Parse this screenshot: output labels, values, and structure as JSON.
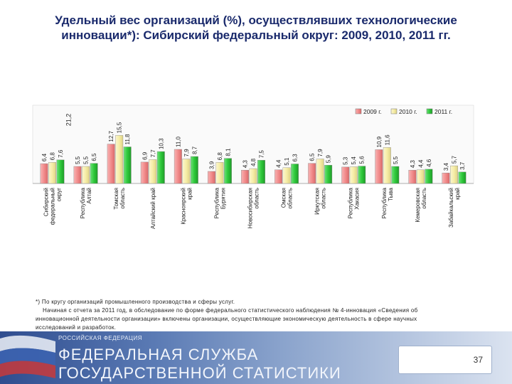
{
  "title_line1": "Удельный вес организаций (%), осуществлявших технологические",
  "title_line2": "инновации*): Сибирский федеральный округ: 2009, 2010, 2011 гг.",
  "chart_data": {
    "type": "bar",
    "categories": [
      [
        "Сибирский",
        "федеральный",
        "округ"
      ],
      [
        "Республика",
        "Алтай"
      ],
      [
        "Томская",
        "область"
      ],
      [
        "Алтайский край"
      ],
      [
        "Красноярский",
        "край"
      ],
      [
        "Республика",
        "Бурятия"
      ],
      [
        "Новосибирская",
        "область"
      ],
      [
        "Омская",
        "область"
      ],
      [
        "Иркутская",
        "область"
      ],
      [
        "Республика",
        "Хакасия"
      ],
      [
        "Республика",
        "Тыва"
      ],
      [
        "Кемеровская",
        "область"
      ],
      [
        "Забайкальский",
        "край"
      ]
    ],
    "series": [
      {
        "name": "2009 г.",
        "color": "#f28c8c",
        "values": [
          6.4,
          5.5,
          12.7,
          6.9,
          11.0,
          3.9,
          4.3,
          4.4,
          6.5,
          5.3,
          10.9,
          4.3,
          3.4
        ]
      },
      {
        "name": "2010 г.",
        "color": "#f6eda6",
        "values": [
          6.8,
          5.5,
          15.5,
          7.7,
          7.9,
          6.8,
          4.8,
          5.1,
          7.9,
          5.4,
          11.6,
          4.4,
          5.7
        ]
      },
      {
        "name": "2011 г.",
        "color": "#2ec93a",
        "values": [
          7.6,
          6.5,
          11.8,
          10.3,
          8.7,
          8.1,
          7.5,
          6.3,
          5.9,
          5.6,
          5.5,
          4.6,
          3.7
        ]
      }
    ],
    "labels": [
      [
        "6,4",
        "6,8",
        "7,6"
      ],
      [
        "5,5",
        "5,5",
        "6,5"
      ],
      [
        "12,7",
        "15,5",
        "11,8"
      ],
      [
        "6,9",
        "7,7",
        "10,3"
      ],
      [
        "11,0",
        "7,9",
        "8,7"
      ],
      [
        "3,9",
        "6,8",
        "8,1"
      ],
      [
        "4,3",
        "4,8",
        "7,5"
      ],
      [
        "4,4",
        "5,1",
        "6,3"
      ],
      [
        "6,5",
        "7,9",
        "5,9"
      ],
      [
        "5,3",
        "5,4",
        "5,6"
      ],
      [
        "10,9",
        "11,6",
        "5,5"
      ],
      [
        "4,3",
        "4,4",
        "4,6"
      ],
      [
        "3,4",
        "5,7",
        "3,7"
      ]
    ],
    "extra_label": "21,2",
    "ylim": [
      0,
      22
    ],
    "legend_position": "top-right",
    "grid": false
  },
  "footnote": {
    "line1": "*) По кругу организаций промышленного производства и сферы услуг.",
    "line2": "Начиная с отчета за 2011 год, в обследование по форме федерального статистического наблюдения № 4-инновация «Сведения об",
    "line3": "инновационной деятельности организации» включены организации, осуществляющие экономическую деятельность в сфере научных",
    "line4": "исследований и разработок."
  },
  "footer": {
    "country": "РОССИЙСКАЯ ФЕДЕРАЦИЯ",
    "org_line1": "ФЕДЕРАЛЬНАЯ СЛУЖБА",
    "org_line2": "ГОСУДАРСТВЕННОЙ СТАТИСТИКИ",
    "page_number": "37"
  }
}
